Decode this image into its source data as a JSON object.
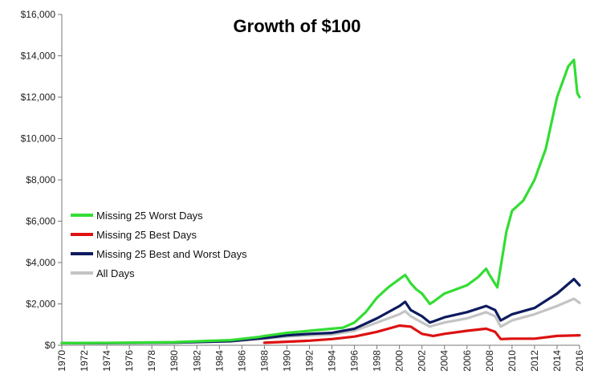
{
  "chart_data": {
    "type": "line",
    "title": "Growth of $100",
    "xlabel": "",
    "ylabel": "",
    "xlim": [
      1970,
      2016
    ],
    "ylim": [
      0,
      16000
    ],
    "y_ticks": [
      {
        "value": 0,
        "label": "$0"
      },
      {
        "value": 2000,
        "label": "$2,000"
      },
      {
        "value": 4000,
        "label": "$4,000"
      },
      {
        "value": 6000,
        "label": "$6,000"
      },
      {
        "value": 8000,
        "label": "$8,000"
      },
      {
        "value": 10000,
        "label": "$10,000"
      },
      {
        "value": 12000,
        "label": "$12,000"
      },
      {
        "value": 14000,
        "label": "$14,000"
      },
      {
        "value": 16000,
        "label": "$16,000"
      }
    ],
    "x_ticks": [
      "1970",
      "1972",
      "1974",
      "1976",
      "1978",
      "1980",
      "1982",
      "1984",
      "1986",
      "1988",
      "1990",
      "1992",
      "1994",
      "1996",
      "1998",
      "2000",
      "2002",
      "2004",
      "2006",
      "2008",
      "2010",
      "2012",
      "2014",
      "2016"
    ],
    "legend_position": "left-middle",
    "grid": false,
    "series": [
      {
        "name": "Missing 25 Worst Days",
        "color": "#33dd33",
        "x": [
          1970,
          1975,
          1980,
          1985,
          1987.5,
          1988,
          1990,
          1992,
          1994,
          1995,
          1996,
          1997,
          1998,
          1999,
          2000,
          2000.5,
          2001,
          2001.5,
          2002,
          2002.7,
          2003,
          2004,
          2005,
          2006,
          2007,
          2007.7,
          2008,
          2008.7,
          2009,
          2009.5,
          2010,
          2011,
          2011.5,
          2012,
          2013,
          2014,
          2015,
          2015.5,
          2015.8,
          2016
        ],
        "values": [
          100,
          120,
          150,
          250,
          400,
          450,
          600,
          700,
          800,
          850,
          1100,
          1600,
          2300,
          2800,
          3200,
          3400,
          3000,
          2700,
          2500,
          2000,
          2100,
          2500,
          2700,
          2900,
          3300,
          3700,
          3400,
          2800,
          3800,
          5500,
          6500,
          7000,
          7500,
          8000,
          9500,
          12000,
          13500,
          13800,
          12200,
          12000
        ]
      },
      {
        "name": "Missing 25 Best Days",
        "color": "#dd1111",
        "x": [
          1988,
          1990,
          1992,
          1994,
          1996,
          1998,
          2000,
          2001,
          2002,
          2003,
          2004,
          2006,
          2007.7,
          2008.5,
          2009,
          2010,
          2012,
          2014,
          2016
        ],
        "values": [
          120,
          170,
          220,
          300,
          420,
          650,
          950,
          900,
          550,
          450,
          550,
          700,
          800,
          650,
          300,
          320,
          320,
          450,
          480
        ]
      },
      {
        "name": "Missing 25 Best and Worst Days",
        "color": "#0d1b5e",
        "x": [
          1970,
          1975,
          1980,
          1985,
          1988,
          1990,
          1992,
          1994,
          1996,
          1998,
          2000,
          2000.5,
          2001,
          2002,
          2002.7,
          2003,
          2004,
          2006,
          2007.7,
          2008.5,
          2009,
          2010,
          2012,
          2014,
          2015.5,
          2016
        ],
        "values": [
          100,
          110,
          130,
          200,
          350,
          480,
          550,
          600,
          800,
          1300,
          1900,
          2100,
          1700,
          1400,
          1100,
          1150,
          1350,
          1600,
          1900,
          1700,
          1200,
          1500,
          1800,
          2500,
          3200,
          2900
        ]
      },
      {
        "name": "All Days",
        "color": "#c4c4c4",
        "x": [
          1970,
          1975,
          1980,
          1985,
          1988,
          1990,
          1992,
          1994,
          1996,
          1998,
          2000,
          2000.5,
          2001,
          2002,
          2002.7,
          2003,
          2004,
          2006,
          2007.7,
          2008.5,
          2009,
          2010,
          2012,
          2014,
          2015.5,
          2016
        ],
        "values": [
          100,
          110,
          130,
          190,
          320,
          420,
          480,
          520,
          700,
          1100,
          1500,
          1650,
          1400,
          1100,
          900,
          950,
          1100,
          1300,
          1600,
          1400,
          900,
          1200,
          1500,
          1900,
          2250,
          2050
        ]
      }
    ]
  }
}
